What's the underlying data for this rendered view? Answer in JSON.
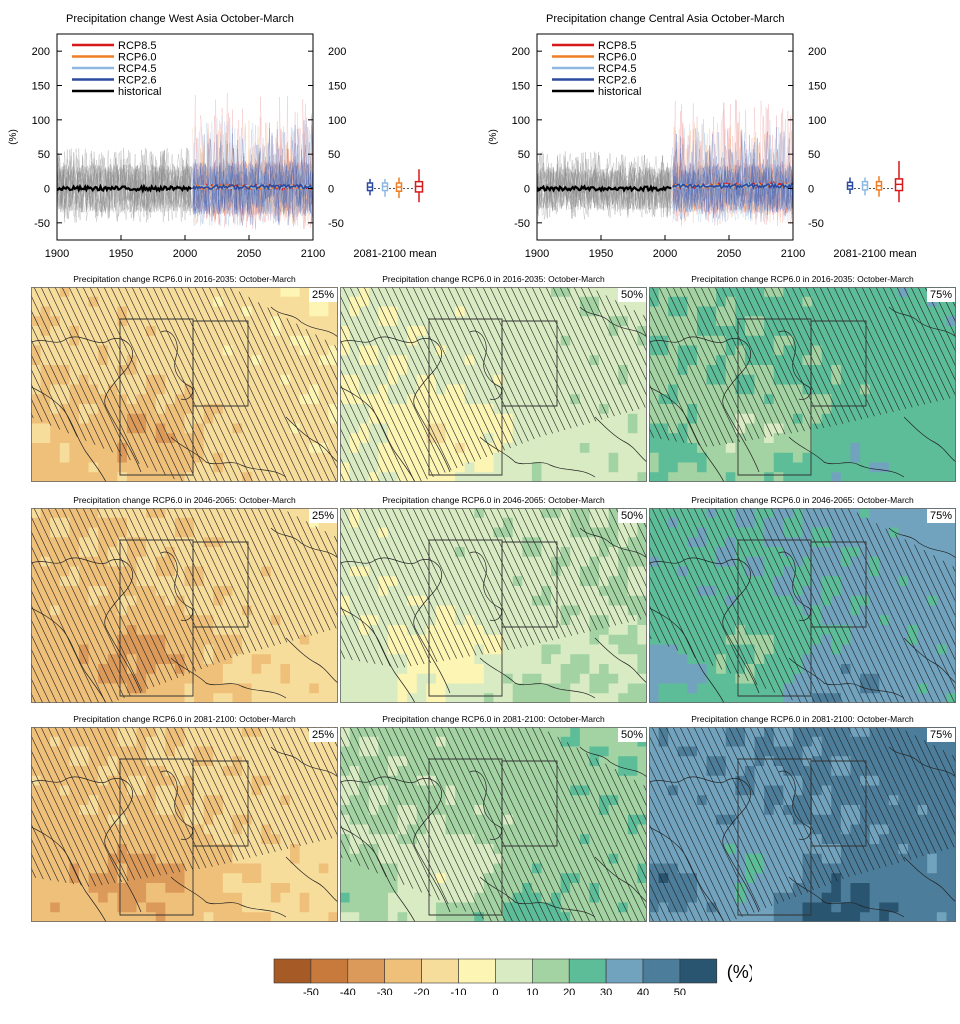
{
  "timeseries": {
    "legend": [
      "RCP8.5",
      "RCP6.0",
      "RCP4.5",
      "RCP2.6",
      "historical"
    ],
    "legend_colors": [
      "#d7191c",
      "#f07e26",
      "#8fb8e0",
      "#2b4ba1",
      "#000000"
    ],
    "y_ticks": [
      "200",
      "150",
      "100",
      "50",
      "0",
      "-50"
    ],
    "y_label": "(%)",
    "x_ticks": [
      "1900",
      "1950",
      "2000",
      "2050",
      "2100"
    ],
    "mean_label": "2081-2100 mean"
  },
  "chart_data": [
    {
      "type": "line",
      "title": "Precipitation change West Asia October-March",
      "ylabel": "(%)",
      "xlim": [
        1900,
        2100
      ],
      "ylim": [
        -75,
        225
      ],
      "series": [
        {
          "name": "historical",
          "x": [
            1900,
            2005
          ],
          "values": [
            0,
            0
          ],
          "spread": [
            -50,
            60
          ]
        },
        {
          "name": "RCP2.6",
          "x": [
            2006,
            2100
          ],
          "values": [
            2,
            3
          ],
          "spread": [
            -55,
            100
          ]
        },
        {
          "name": "RCP4.5",
          "x": [
            2006,
            2100
          ],
          "values": [
            2,
            3
          ],
          "spread": [
            -55,
            110
          ]
        },
        {
          "name": "RCP6.0",
          "x": [
            2006,
            2100
          ],
          "values": [
            2,
            2
          ],
          "spread": [
            -55,
            100
          ]
        },
        {
          "name": "RCP8.5",
          "x": [
            2006,
            2100
          ],
          "values": [
            2,
            3
          ],
          "spread": [
            -60,
            140
          ]
        }
      ],
      "boxplots_2081_2100": [
        {
          "name": "RCP2.6",
          "min": -10,
          "q1": -3,
          "median": 2,
          "q3": 8,
          "max": 14
        },
        {
          "name": "RCP4.5",
          "min": -12,
          "q1": -3,
          "median": 3,
          "q3": 8,
          "max": 14
        },
        {
          "name": "RCP6.0",
          "min": -14,
          "q1": -4,
          "median": 2,
          "q3": 8,
          "max": 16
        },
        {
          "name": "RCP8.5",
          "min": -20,
          "q1": -5,
          "median": 3,
          "q3": 10,
          "max": 28
        }
      ]
    },
    {
      "type": "line",
      "title": "Precipitation change Central Asia October-March",
      "ylabel": "(%)",
      "xlim": [
        1900,
        2100
      ],
      "ylim": [
        -75,
        225
      ],
      "series": [
        {
          "name": "historical",
          "x": [
            1900,
            2005
          ],
          "values": [
            0,
            0
          ],
          "spread": [
            -45,
            55
          ]
        },
        {
          "name": "RCP2.6",
          "x": [
            2006,
            2100
          ],
          "values": [
            3,
            4
          ],
          "spread": [
            -50,
            90
          ]
        },
        {
          "name": "RCP4.5",
          "x": [
            2006,
            2100
          ],
          "values": [
            3,
            5
          ],
          "spread": [
            -50,
            100
          ]
        },
        {
          "name": "RCP6.0",
          "x": [
            2006,
            2100
          ],
          "values": [
            3,
            5
          ],
          "spread": [
            -50,
            100
          ]
        },
        {
          "name": "RCP8.5",
          "x": [
            2006,
            2100
          ],
          "values": [
            3,
            6
          ],
          "spread": [
            -55,
            130
          ]
        }
      ],
      "boxplots_2081_2100": [
        {
          "name": "RCP2.6",
          "min": -8,
          "q1": -1,
          "median": 4,
          "q3": 9,
          "max": 16
        },
        {
          "name": "RCP4.5",
          "min": -10,
          "q1": -2,
          "median": 5,
          "q3": 10,
          "max": 16
        },
        {
          "name": "RCP6.0",
          "min": -12,
          "q1": -2,
          "median": 4,
          "q3": 10,
          "max": 18
        },
        {
          "name": "RCP8.5",
          "min": -20,
          "q1": -3,
          "median": 6,
          "q3": 14,
          "max": 40
        }
      ]
    },
    {
      "type": "heatmap",
      "panels": [
        {
          "title": "Precipitation change RCP6.0 in 2016-2035: October-March",
          "percentile": "25%"
        },
        {
          "title": "Precipitation change RCP6.0 in 2016-2035: October-March",
          "percentile": "50%"
        },
        {
          "title": "Precipitation change RCP6.0 in 2016-2035: October-March",
          "percentile": "75%"
        },
        {
          "title": "Precipitation change RCP6.0 in 2046-2065: October-March",
          "percentile": "25%"
        },
        {
          "title": "Precipitation change RCP6.0 in 2046-2065: October-March",
          "percentile": "50%"
        },
        {
          "title": "Precipitation change RCP6.0 in 2046-2065: October-March",
          "percentile": "75%"
        },
        {
          "title": "Precipitation change RCP6.0 in 2081-2100: October-March",
          "percentile": "25%"
        },
        {
          "title": "Precipitation change RCP6.0 in 2081-2100: October-March",
          "percentile": "50%"
        },
        {
          "title": "Precipitation change RCP6.0 in 2081-2100: October-March",
          "percentile": "75%"
        }
      ],
      "colorbar": {
        "ticks": [
          "-50",
          "-40",
          "-30",
          "-20",
          "-10",
          "0",
          "10",
          "20",
          "30",
          "40",
          "50"
        ],
        "unit": "(%)",
        "colors": [
          "#a65a26",
          "#c77a3c",
          "#dc9a5a",
          "#efc07a",
          "#f7dd9c",
          "#fdf5b3",
          "#d9ebc3",
          "#a3d3a3",
          "#5cbd98",
          "#72a3be",
          "#4c7d9a",
          "#2a5570"
        ]
      }
    }
  ]
}
